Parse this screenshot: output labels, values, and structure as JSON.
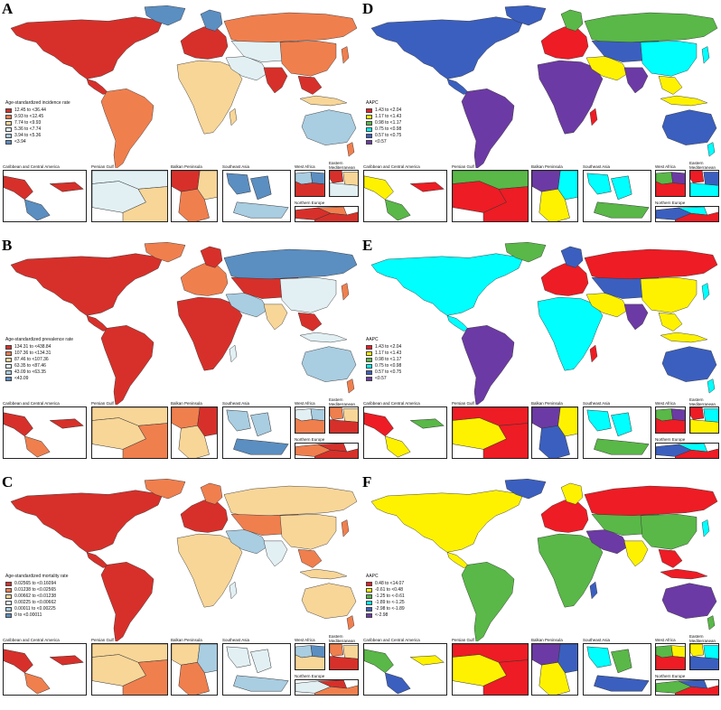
{
  "colors": {
    "seq6": [
      "#d7302a",
      "#f07f4e",
      "#f8d698",
      "#e2f0f4",
      "#a9cde1",
      "#5b8ec1"
    ],
    "aapc6": [
      "#ee1c24",
      "#fff200",
      "#59b847",
      "#00ffff",
      "#3b5fbf",
      "#6c3aa4"
    ],
    "border": "#333333"
  },
  "panels": [
    {
      "letter": "A",
      "scheme": "seq",
      "legend": {
        "title": "Age-standardized incidence rate",
        "items": [
          "12.45 to <36.44",
          "9.93 to <12.45",
          "7.74 to <9.93",
          "5.36 to <7.74",
          "3.94 to <5.36",
          "<3.94"
        ]
      }
    },
    {
      "letter": "D",
      "scheme": "aapc",
      "legend": {
        "title": "AAPC",
        "items": [
          "1.43 to <2.04",
          "1.17 to <1.43",
          "0.98 to <1.17",
          "0.75 to <0.98",
          "0.57 to <0.75",
          "<0.57"
        ]
      }
    },
    {
      "letter": "B",
      "scheme": "seq",
      "legend": {
        "title": "Age-standardized prevalence rate",
        "items": [
          "134.31 to <438.84",
          "107.36 to <134.31",
          "87.46 to <107.36",
          "63.35 to <87.46",
          "43.09 to <63.35",
          "<43.09"
        ]
      }
    },
    {
      "letter": "E",
      "scheme": "aapc",
      "legend": {
        "title": "AAPC",
        "items": [
          "1.43 to <2.04",
          "1.17 to <1.43",
          "0.98 to <1.17",
          "0.75 to <0.98",
          "0.57 to <0.75",
          "<0.57"
        ]
      }
    },
    {
      "letter": "C",
      "scheme": "seq",
      "legend": {
        "title": "Age-standardized mortality rate",
        "items": [
          "0.02565 to <0.16094",
          "0.01238 to <0.02565",
          "0.00662 to <0.01238",
          "0.00225 to <0.00662",
          "0.00011 to <0.00225",
          "0 to <0.00011"
        ]
      }
    },
    {
      "letter": "F",
      "scheme": "aapc",
      "legend": {
        "title": "AAPC",
        "items": [
          "0.48 to <14.07",
          "-0.61 to <0.48",
          "-1.25 to <-0.61",
          "-1.89 to <-1.25",
          "-2.98 to <-1.89",
          "<-2.98"
        ]
      }
    }
  ],
  "insets": {
    "caribbean": "Caribbean and Central America",
    "persian_gulf": "Persian Gulf",
    "balkan": "Balkan Peninsula",
    "southeast_asia": "Southeast Asia",
    "west_africa": "West Africa",
    "eastern_med": "Eastern Mediterranean",
    "northern_europe": "Northern Europe"
  }
}
